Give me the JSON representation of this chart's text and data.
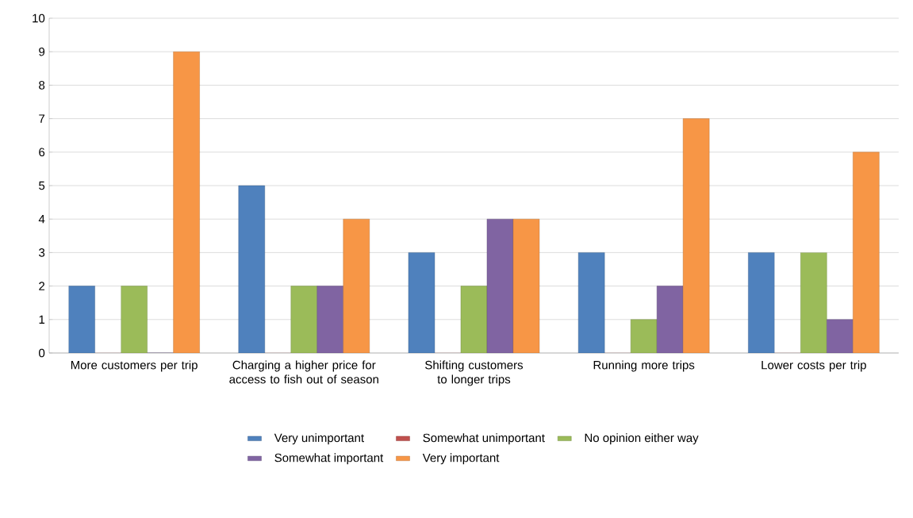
{
  "chart_data": {
    "type": "bar",
    "categories": [
      "More customers per trip",
      "Charging a higher price for access to fish out of season",
      "Shifting customers to longer trips",
      "Running more trips",
      "Lower costs per trip"
    ],
    "series": [
      {
        "name": "Very unimportant",
        "color": "#4f81bd",
        "values": [
          2,
          5,
          3,
          3,
          3
        ]
      },
      {
        "name": "Somewhat unimportant",
        "color": "#c0504d",
        "values": [
          0,
          0,
          0,
          0,
          0
        ]
      },
      {
        "name": "No opinion either way",
        "color": "#9bbb59",
        "values": [
          2,
          2,
          2,
          1,
          3
        ]
      },
      {
        "name": "Somewhat important",
        "color": "#8064a2",
        "values": [
          0,
          2,
          4,
          2,
          1
        ]
      },
      {
        "name": "Very important",
        "color": "#f79646",
        "values": [
          9,
          4,
          4,
          7,
          6
        ]
      }
    ],
    "ylim": [
      0,
      10
    ],
    "yticks": [
      0,
      1,
      2,
      3,
      4,
      5,
      6,
      7,
      8,
      9,
      10
    ],
    "grid": "y",
    "legend": "bottom"
  }
}
